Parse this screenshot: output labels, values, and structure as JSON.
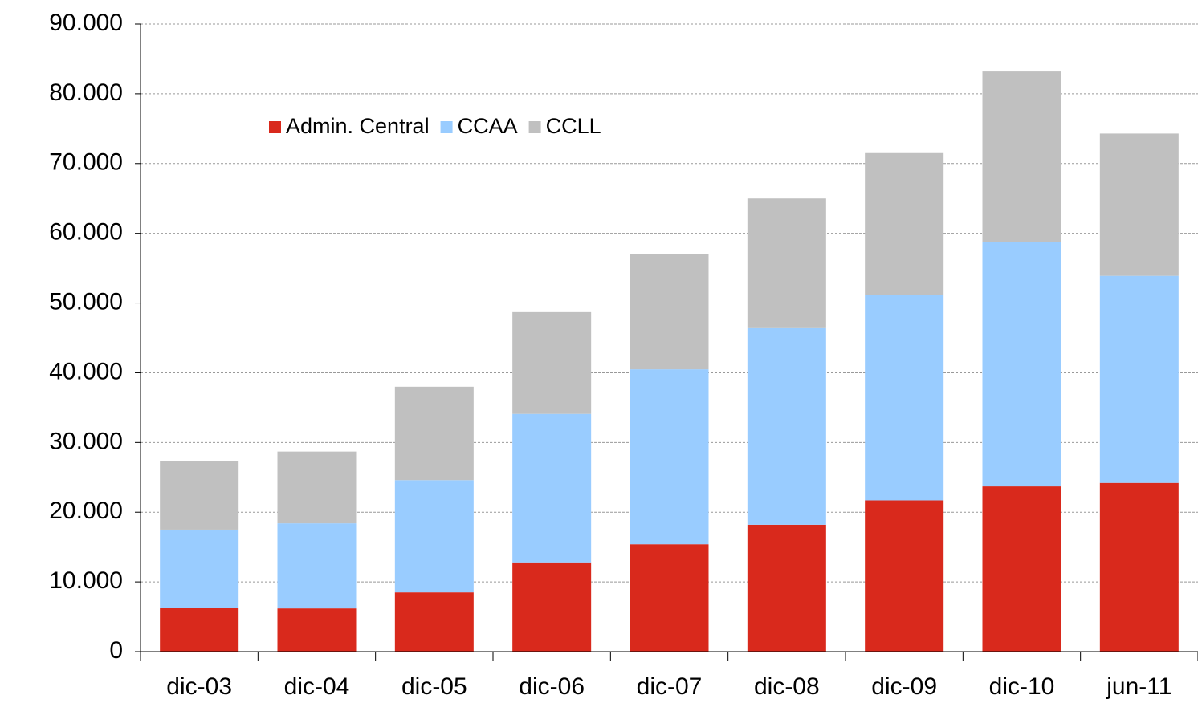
{
  "chart_data": {
    "type": "stacked-bar",
    "categories": [
      "dic-03",
      "dic-04",
      "dic-05",
      "dic-06",
      "dic-07",
      "dic-08",
      "dic-09",
      "dic-10",
      "jun-11"
    ],
    "series": [
      {
        "name": "Admin. Central",
        "color": "#d9291c",
        "values": [
          6300,
          6200,
          8500,
          12800,
          15400,
          18200,
          21700,
          23700,
          24200
        ]
      },
      {
        "name": "CCAA",
        "color": "#99ccff",
        "values": [
          11200,
          12200,
          16100,
          21300,
          25100,
          28200,
          29500,
          35000,
          29700
        ]
      },
      {
        "name": "CCLL",
        "color": "#c0c0c0",
        "values": [
          9800,
          10300,
          13400,
          14600,
          16500,
          18600,
          20300,
          24500,
          20400
        ]
      }
    ],
    "ylim": [
      0,
      90000
    ],
    "yticks": [
      0,
      {
        "value": 10000,
        "label": "10.000"
      },
      {
        "value": 20000,
        "label": "20.000"
      },
      {
        "value": 30000,
        "label": "30.000"
      },
      {
        "value": 40000,
        "label": "40.000"
      },
      {
        "value": 50000,
        "label": "50.000"
      },
      {
        "value": 60000,
        "label": "60.000"
      },
      {
        "value": 70000,
        "label": "70.000"
      },
      {
        "value": 80000,
        "label": "80.000"
      },
      {
        "value": 90000,
        "label": "90.000"
      }
    ],
    "grid": true
  }
}
